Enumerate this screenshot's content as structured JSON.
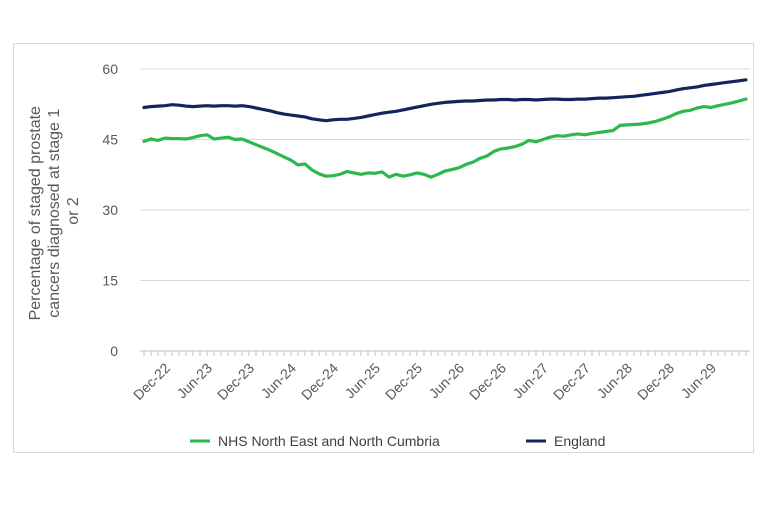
{
  "chart_data": {
    "type": "line",
    "title": "",
    "ylabel": "Percentage of staged prostate cancers diagnosed at stage 1 or 2",
    "ylabel_lines": [
      "Percentage of staged prostate",
      "cancers diagnosed at stage 1",
      "or 2"
    ],
    "ylim": [
      0,
      60
    ],
    "yticks": [
      0,
      15,
      30,
      45,
      60
    ],
    "grid": true,
    "legend_position": "bottom",
    "x_start": "Sep-22",
    "x_end": "Jul-29",
    "x_tick_labels": [
      "Dec-22",
      "Jun-23",
      "Dec-23",
      "Jun-24",
      "Dec-24",
      "Jun-25",
      "Dec-25",
      "Jun-26",
      "Dec-26",
      "Jun-27",
      "Dec-27",
      "Jun-28",
      "Dec-28",
      "Jun-29"
    ],
    "series": [
      {
        "name": "NHS North East and North Cumbria",
        "color": "#2db84d",
        "values": [
          44.6,
          45.1,
          44.8,
          45.3,
          45.2,
          45.2,
          45.1,
          45.4,
          45.8,
          46.0,
          45.1,
          45.3,
          45.5,
          45.0,
          45.1,
          44.5,
          43.9,
          43.3,
          42.7,
          42.0,
          41.3,
          40.6,
          39.6,
          39.8,
          38.5,
          37.7,
          37.2,
          37.3,
          37.6,
          38.2,
          37.9,
          37.6,
          37.9,
          37.8,
          38.1,
          37.0,
          37.6,
          37.2,
          37.5,
          37.9,
          37.6,
          37.0,
          37.6,
          38.3,
          38.6,
          39.0,
          39.7,
          40.2,
          41.0,
          41.5,
          42.5,
          43.0,
          43.2,
          43.5,
          44.0,
          44.8,
          44.5,
          45.0,
          45.5,
          45.8,
          45.7,
          46.0,
          46.2,
          46.0,
          46.3,
          46.5,
          46.7,
          46.9,
          48.0,
          48.1,
          48.2,
          48.3,
          48.5,
          48.8,
          49.3,
          49.8,
          50.5,
          51.0,
          51.2,
          51.7,
          52.0,
          51.8,
          52.2,
          52.5,
          52.8,
          53.2,
          53.6
        ]
      },
      {
        "name": "England",
        "color": "#14255e",
        "values": [
          51.8,
          52.0,
          52.1,
          52.2,
          52.4,
          52.3,
          52.1,
          52.0,
          52.1,
          52.2,
          52.1,
          52.2,
          52.2,
          52.1,
          52.2,
          52.0,
          51.7,
          51.4,
          51.1,
          50.7,
          50.4,
          50.2,
          50.0,
          49.8,
          49.4,
          49.2,
          49.0,
          49.2,
          49.3,
          49.3,
          49.5,
          49.7,
          50.0,
          50.3,
          50.6,
          50.8,
          51.0,
          51.3,
          51.6,
          51.9,
          52.2,
          52.5,
          52.7,
          52.9,
          53.0,
          53.1,
          53.2,
          53.2,
          53.3,
          53.4,
          53.4,
          53.5,
          53.5,
          53.4,
          53.5,
          53.5,
          53.4,
          53.5,
          53.6,
          53.6,
          53.5,
          53.5,
          53.6,
          53.6,
          53.7,
          53.8,
          53.8,
          53.9,
          54.0,
          54.1,
          54.2,
          54.4,
          54.6,
          54.8,
          55.0,
          55.2,
          55.5,
          55.8,
          56.0,
          56.2,
          56.5,
          56.7,
          56.9,
          57.1,
          57.3,
          57.5,
          57.7
        ]
      }
    ]
  }
}
